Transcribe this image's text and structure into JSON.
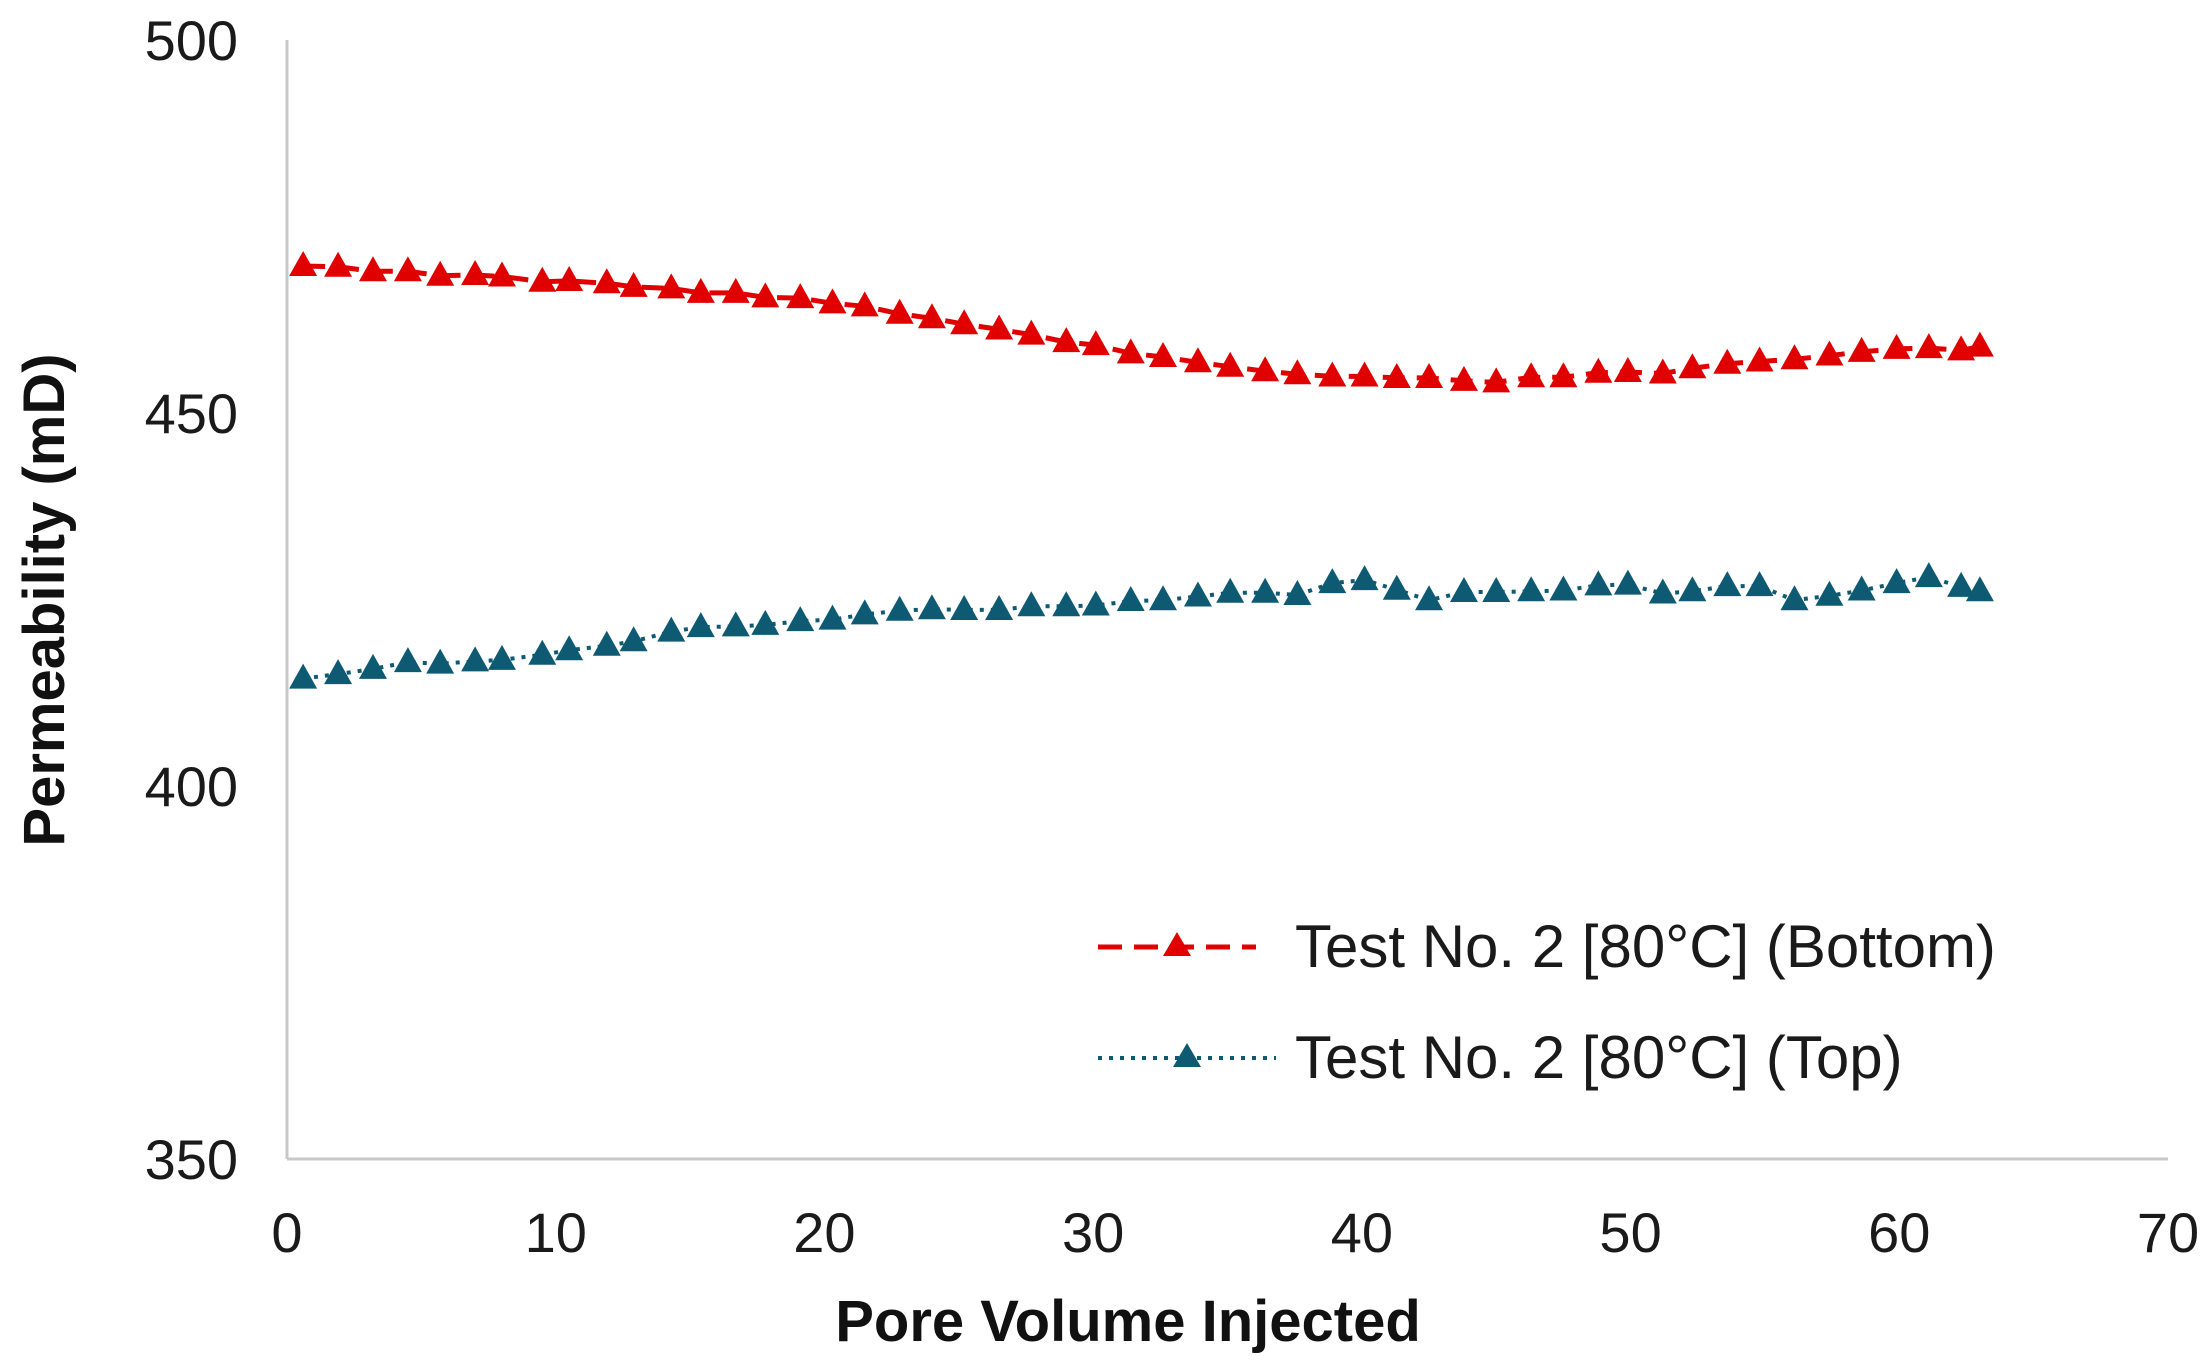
{
  "chart_data": {
    "type": "line",
    "title": "",
    "xlabel": "Pore Volume Injected",
    "ylabel": "Permeability (mD)",
    "xlim": [
      0,
      70
    ],
    "ylim": [
      350,
      500
    ],
    "x_ticks": [
      "0",
      "10",
      "20",
      "30",
      "40",
      "50",
      "60",
      "70"
    ],
    "y_ticks": [
      "350",
      "400",
      "450",
      "500"
    ],
    "grid": false,
    "legend_position": "bottom-right",
    "series": [
      {
        "name": "Test No. 2 [80°C] (Bottom)",
        "color": "#e00000",
        "line_style": "dashed",
        "marker": "triangle",
        "x": [
          0.6,
          1.9,
          3.2,
          4.5,
          5.7,
          7.0,
          8.0,
          9.5,
          10.5,
          11.9,
          12.9,
          14.3,
          15.4,
          16.7,
          17.8,
          19.1,
          20.3,
          21.5,
          22.8,
          24.0,
          25.2,
          26.5,
          27.7,
          29.0,
          30.1,
          31.4,
          32.6,
          33.9,
          35.1,
          36.4,
          37.6,
          38.9,
          40.1,
          41.3,
          42.5,
          43.8,
          45.0,
          46.3,
          47.5,
          48.8,
          49.9,
          51.2,
          52.3,
          53.6,
          54.8,
          56.1,
          57.4,
          58.6,
          59.9,
          61.1,
          62.3,
          63.0
        ],
        "values": [
          469.7,
          469.6,
          469.0,
          469.0,
          468.4,
          468.5,
          468.3,
          467.6,
          467.7,
          467.4,
          466.9,
          466.7,
          466.1,
          466.1,
          465.5,
          465.4,
          464.7,
          464.3,
          463.3,
          462.7,
          461.9,
          461.2,
          460.5,
          459.5,
          459.1,
          458.0,
          457.5,
          456.8,
          456.2,
          455.6,
          455.2,
          454.9,
          454.9,
          454.7,
          454.7,
          454.3,
          454.1,
          454.8,
          454.8,
          455.4,
          455.5,
          455.3,
          456.0,
          456.6,
          456.9,
          457.2,
          457.7,
          458.2,
          458.6,
          458.7,
          458.4,
          458.9
        ]
      },
      {
        "name": "Test No. 2 [80°C] (Top)",
        "color": "#0e5a73",
        "line_style": "dotted",
        "marker": "triangle",
        "x": [
          0.6,
          1.9,
          3.2,
          4.5,
          5.7,
          7.0,
          8.0,
          9.5,
          10.5,
          11.9,
          12.9,
          14.3,
          15.4,
          16.7,
          17.8,
          19.1,
          20.3,
          21.5,
          22.8,
          24.0,
          25.2,
          26.5,
          27.7,
          29.0,
          30.1,
          31.4,
          32.6,
          33.9,
          35.1,
          36.4,
          37.6,
          38.9,
          40.1,
          41.3,
          42.5,
          43.8,
          45.0,
          46.3,
          47.5,
          48.8,
          49.9,
          51.2,
          52.3,
          53.6,
          54.8,
          56.1,
          57.4,
          58.6,
          59.9,
          61.1,
          62.3,
          63.0
        ],
        "values": [
          414.4,
          415.0,
          415.7,
          416.6,
          416.4,
          416.7,
          416.9,
          417.6,
          418.2,
          418.8,
          419.4,
          420.7,
          421.3,
          421.4,
          421.6,
          422.1,
          422.3,
          423.0,
          423.5,
          423.7,
          423.6,
          423.6,
          424.1,
          424.1,
          424.2,
          424.8,
          424.9,
          425.4,
          425.9,
          425.9,
          425.6,
          427.2,
          427.6,
          426.3,
          424.9,
          426.0,
          426.0,
          426.1,
          426.2,
          426.9,
          427.0,
          425.8,
          426.1,
          426.8,
          426.8,
          424.9,
          425.5,
          426.2,
          427.2,
          428.0,
          426.7,
          426.1
        ]
      }
    ]
  }
}
